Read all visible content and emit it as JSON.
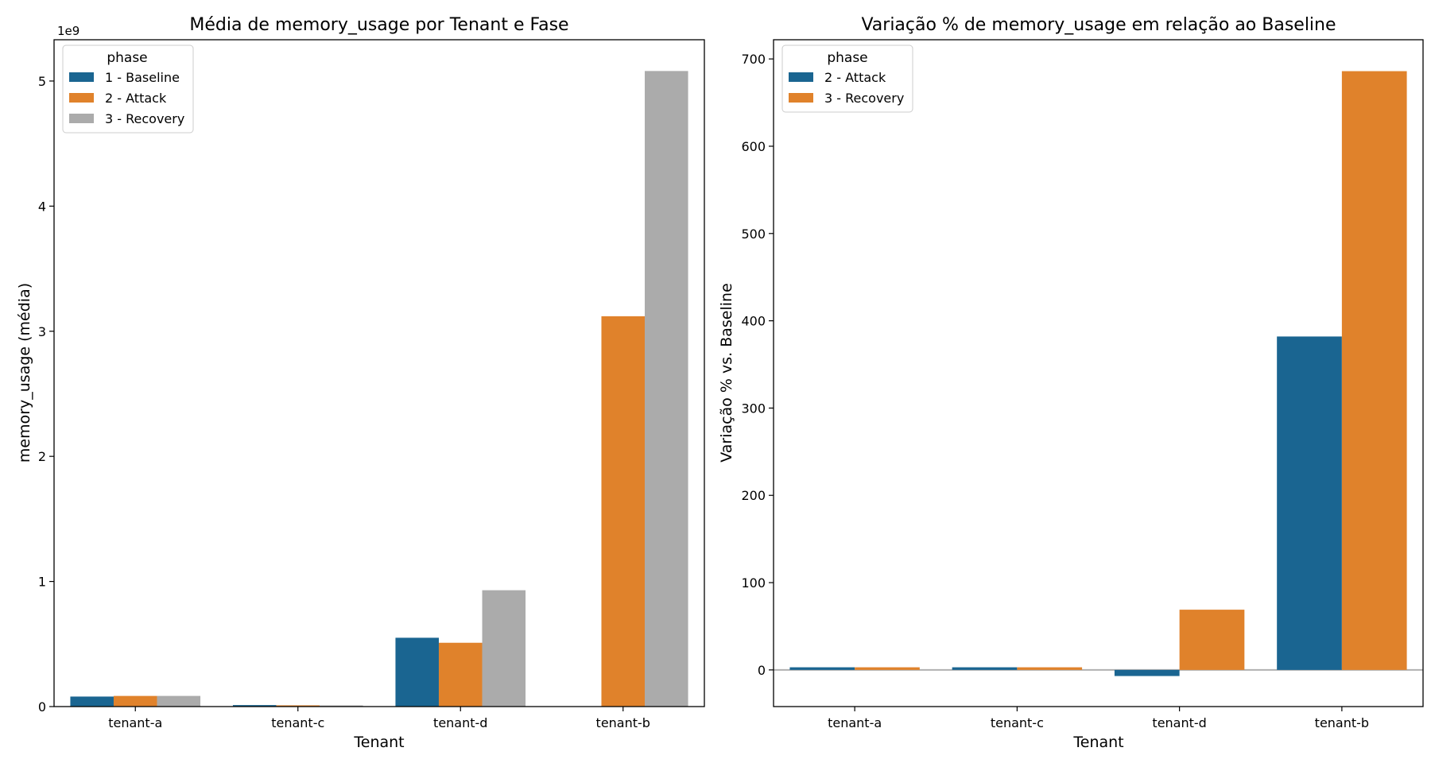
{
  "chart_data": [
    {
      "type": "bar",
      "title": "Média de memory_usage por Tenant e Fase",
      "xlabel": "Tenant",
      "ylabel": "memory_usage (média)",
      "offset_label": "1e9",
      "categories": [
        "tenant-a",
        "tenant-c",
        "tenant-d",
        "tenant-b"
      ],
      "ylim": [
        0,
        5.33
      ],
      "yticks": [
        "0",
        "1",
        "2",
        "3",
        "4",
        "5"
      ],
      "legend": {
        "title": "phase",
        "position": "top-left"
      },
      "series": [
        {
          "name": "1 - Baseline",
          "color": "#1a6591",
          "values": [
            0.08,
            0.012,
            0.55,
            0
          ]
        },
        {
          "name": "2 - Attack",
          "color": "#e0822b",
          "values": [
            0.085,
            0.01,
            0.51,
            3.12
          ]
        },
        {
          "name": "3 - Recovery",
          "color": "#ababab",
          "values": [
            0.085,
            0.009,
            0.93,
            5.08
          ]
        }
      ]
    },
    {
      "type": "bar",
      "title": "Variação % de memory_usage em relação ao Baseline",
      "xlabel": "Tenant",
      "ylabel": "Variação % vs. Baseline",
      "categories": [
        "tenant-a",
        "tenant-c",
        "tenant-d",
        "tenant-b"
      ],
      "ylim": [
        -42,
        722
      ],
      "yticks": [
        "0",
        "100",
        "200",
        "300",
        "400",
        "500",
        "600",
        "700"
      ],
      "reference_line": 0,
      "legend": {
        "title": "phase",
        "position": "top-left"
      },
      "series": [
        {
          "name": "2 - Attack",
          "color": "#1a6591",
          "values": [
            3,
            3,
            -7,
            382
          ]
        },
        {
          "name": "3 - Recovery",
          "color": "#e0822b",
          "values": [
            3,
            3,
            69,
            686
          ]
        }
      ]
    }
  ]
}
